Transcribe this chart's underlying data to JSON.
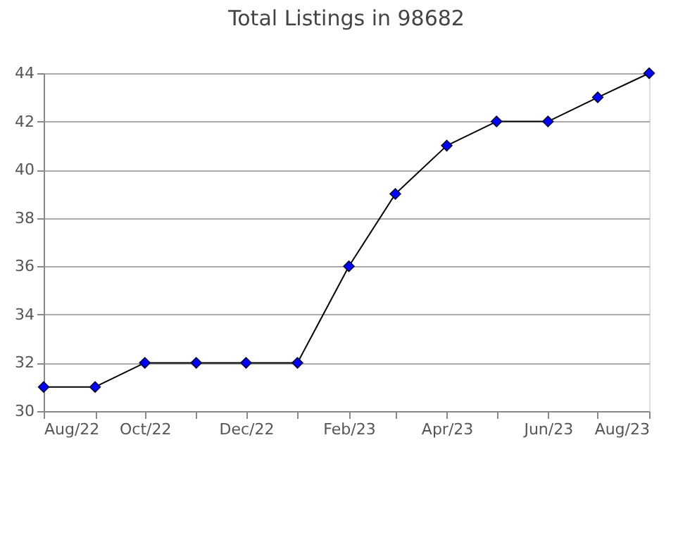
{
  "chart_data": {
    "type": "line",
    "title": "Total Listings in 98682",
    "x": [
      "2022-08",
      "2022-09",
      "2022-10",
      "2022-11",
      "2022-12",
      "2023-01",
      "2023-02",
      "2023-03",
      "2023-04",
      "2023-05",
      "2023-06",
      "2023-07",
      "2023-08"
    ],
    "series": [
      {
        "color": "#000000",
        "values": [
          31,
          31,
          32,
          32,
          32,
          32,
          36,
          39,
          41,
          42,
          42,
          43,
          44
        ]
      }
    ],
    "marker": "diamond",
    "line_style": "solid",
    "xlim": [
      "2022-08",
      "2023-08"
    ],
    "xticks": [
      {
        "value": "2022-08",
        "label": "Aug/22"
      },
      {
        "value": "2022-09",
        "label": null
      },
      {
        "value": "2022-10",
        "label": "Oct/22"
      },
      {
        "value": "2022-11",
        "label": null
      },
      {
        "value": "2022-12",
        "label": "Dec/22"
      },
      {
        "value": "2023-01",
        "label": null
      },
      {
        "value": "2023-02",
        "label": "Feb/23"
      },
      {
        "value": "2023-03",
        "label": null
      },
      {
        "value": "2023-04",
        "label": "Apr/23"
      },
      {
        "value": "2023-05",
        "label": null
      },
      {
        "value": "2023-06",
        "label": "Jun/23"
      },
      {
        "value": "2023-07",
        "label": null
      },
      {
        "value": "2023-08",
        "label": "Aug/23"
      }
    ],
    "ylim": [
      30,
      44
    ],
    "yticks": [
      30,
      32,
      34,
      36,
      38,
      40,
      42,
      44
    ],
    "grid": "y",
    "legend": false
  }
}
